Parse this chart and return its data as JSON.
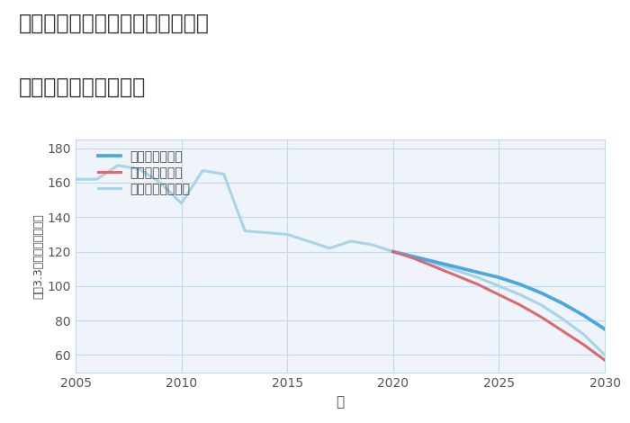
{
  "title_line1": "神奈川県横浜市南区永田山王台の",
  "title_line2": "中古戸建ての価格推移",
  "xlabel": "年",
  "ylabel": "坪（3.3㎡）単価（万円）",
  "legend_labels": [
    "グッドシナリオ",
    "バッドシナリオ",
    "ノーマルシナリオ"
  ],
  "colors": {
    "good": "#4aa8df",
    "bad": "#d96a72",
    "normal": "#a8d4e6"
  },
  "historical_years": [
    2005,
    2006,
    2007,
    2008,
    2009,
    2010,
    2011,
    2012,
    2013,
    2014,
    2015,
    2016,
    2017,
    2018,
    2019,
    2020
  ],
  "historical_values": [
    162,
    162,
    170,
    168,
    160,
    148,
    167,
    165,
    132,
    131,
    130,
    126,
    122,
    126,
    124,
    120
  ],
  "good_years": [
    2020,
    2021,
    2022,
    2023,
    2024,
    2025,
    2026,
    2027,
    2028,
    2029,
    2030
  ],
  "good_values": [
    120,
    117,
    114,
    111,
    108,
    105,
    101,
    96,
    90,
    83,
    75
  ],
  "bad_years": [
    2020,
    2021,
    2022,
    2023,
    2024,
    2025,
    2026,
    2027,
    2028,
    2029,
    2030
  ],
  "bad_values": [
    120,
    116,
    111,
    106,
    101,
    95,
    89,
    82,
    74,
    66,
    57
  ],
  "normal_years": [
    2020,
    2021,
    2022,
    2023,
    2024,
    2025,
    2026,
    2027,
    2028,
    2029,
    2030
  ],
  "normal_values": [
    120,
    117,
    113,
    109,
    105,
    100,
    95,
    89,
    81,
    72,
    60
  ],
  "xlim": [
    2005,
    2030
  ],
  "ylim": [
    50,
    185
  ],
  "yticks": [
    60,
    80,
    100,
    120,
    140,
    160,
    180
  ],
  "xticks": [
    2005,
    2010,
    2015,
    2020,
    2025,
    2030
  ],
  "background_color": "#eef4fa",
  "grid_color": "#c5d8ea",
  "linewidth": 2.2,
  "title_fontsize": 17,
  "axis_fontsize": 11,
  "tick_fontsize": 10,
  "legend_fontsize": 10
}
